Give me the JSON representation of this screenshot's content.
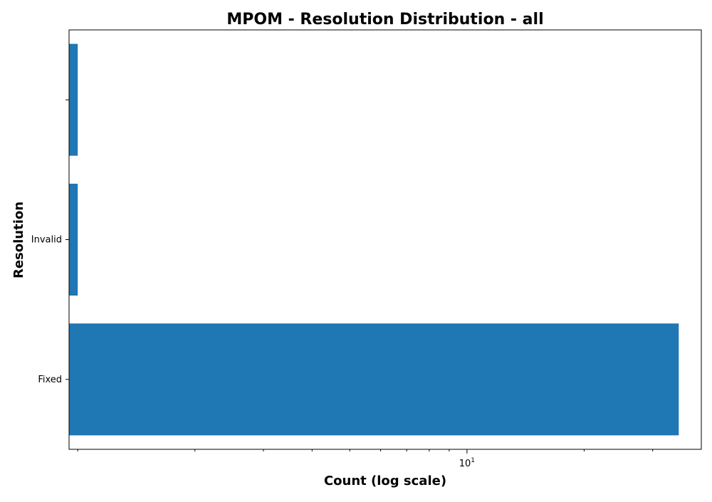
{
  "chart_data": {
    "type": "bar",
    "orientation": "horizontal",
    "title": "MPOM - Resolution Distribution - all",
    "xlabel": "Count (log scale)",
    "ylabel": "Resolution",
    "x_scale": "log",
    "xlim": [
      0.95,
      40
    ],
    "categories": [
      "Fixed",
      "Invalid",
      ""
    ],
    "values": [
      35,
      1,
      1
    ],
    "bar_color": "#1f77b4",
    "x_major_ticks": [
      {
        "value": 10,
        "base": "10",
        "exp": "1"
      }
    ],
    "x_minor_ticks": [
      1,
      2,
      3,
      4,
      5,
      6,
      7,
      8,
      9,
      20,
      30
    ],
    "grid": false,
    "legend": "none"
  }
}
